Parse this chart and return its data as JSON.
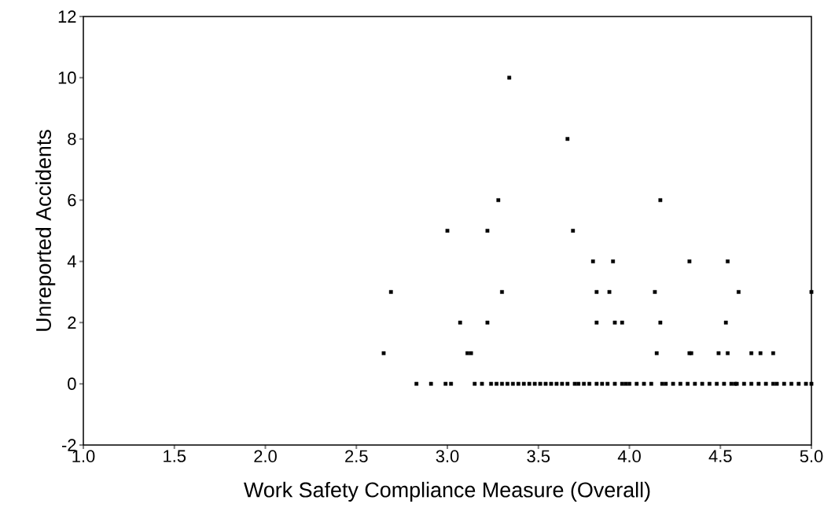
{
  "chart_data": {
    "type": "scatter",
    "xlabel": "Work Safety Compliance Measure (Overall)",
    "ylabel": "Unreported Accidents",
    "x": [
      3.34,
      3.66,
      3.28,
      4.17,
      3.0,
      3.22,
      3.69,
      3.8,
      3.91,
      4.33,
      4.54,
      2.69,
      3.3,
      3.82,
      3.89,
      4.14,
      4.6,
      5.0,
      3.07,
      3.22,
      3.82,
      3.92,
      3.96,
      4.17,
      4.53,
      2.65,
      3.11,
      3.13,
      4.15,
      4.33,
      4.34,
      4.49,
      4.54,
      4.67,
      4.72,
      4.79,
      2.83,
      2.91,
      2.99,
      3.02,
      3.15,
      3.19,
      3.24,
      3.27,
      3.3,
      3.33,
      3.36,
      3.39,
      3.42,
      3.45,
      3.48,
      3.51,
      3.54,
      3.57,
      3.6,
      3.63,
      3.66,
      3.7,
      3.72,
      3.75,
      3.78,
      3.82,
      3.85,
      3.88,
      3.92,
      3.96,
      3.98,
      4.0,
      4.04,
      4.08,
      4.12,
      4.18,
      4.2,
      4.24,
      4.28,
      4.32,
      4.36,
      4.4,
      4.44,
      4.48,
      4.52,
      4.56,
      4.58,
      4.59,
      4.63,
      4.67,
      4.71,
      4.75,
      4.79,
      4.81,
      4.85,
      4.89,
      4.93,
      4.97,
      5.0
    ],
    "values": [
      10,
      8,
      6,
      6,
      5,
      5,
      5,
      4,
      4,
      4,
      4,
      3,
      3,
      3,
      3,
      3,
      3,
      3,
      2,
      2,
      2,
      2,
      2,
      2,
      2,
      1,
      1,
      1,
      1,
      1,
      1,
      1,
      1,
      1,
      1,
      1,
      0,
      0,
      0,
      0,
      0,
      0,
      0,
      0,
      0,
      0,
      0,
      0,
      0,
      0,
      0,
      0,
      0,
      0,
      0,
      0,
      0,
      0,
      0,
      0,
      0,
      0,
      0,
      0,
      0,
      0,
      0,
      0,
      0,
      0,
      0,
      0,
      0,
      0,
      0,
      0,
      0,
      0,
      0,
      0,
      0,
      0,
      0,
      0,
      0,
      0,
      0,
      0,
      0,
      0,
      0,
      0,
      0,
      0,
      0
    ],
    "color": "#000000",
    "marker": "square",
    "xlim": [
      1.0,
      5.0
    ],
    "xticks": [
      {
        "value": 1.0,
        "label": "1.0"
      },
      {
        "value": 1.5,
        "label": "1.5"
      },
      {
        "value": 2.0,
        "label": "2.0"
      },
      {
        "value": 2.5,
        "label": "2.5"
      },
      {
        "value": 3.0,
        "label": "3.0"
      },
      {
        "value": 3.5,
        "label": "3.5"
      },
      {
        "value": 4.0,
        "label": "4.0"
      },
      {
        "value": 4.5,
        "label": "4.5"
      },
      {
        "value": 5.0,
        "label": "5.0"
      }
    ],
    "ylim": [
      -2,
      12
    ],
    "yticks": [
      -2,
      0,
      2,
      4,
      6,
      8,
      10,
      12
    ]
  }
}
